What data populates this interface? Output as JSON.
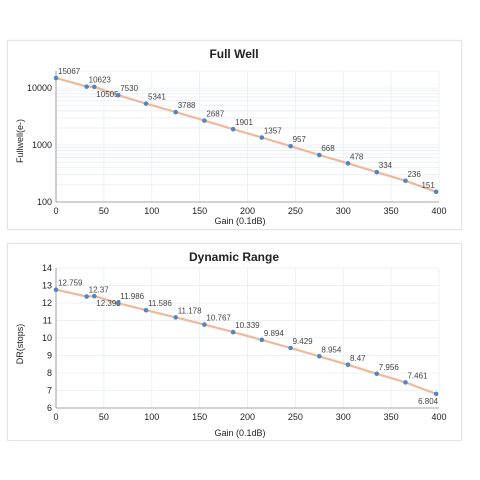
{
  "chart_data": [
    {
      "type": "line",
      "title": "Full Well",
      "xlabel": "Gain (0.1dB)",
      "ylabel": "Fullwell(e-)",
      "yscale": "log",
      "xlim": [
        0,
        400
      ],
      "ylim": [
        100,
        20000
      ],
      "xticks": [
        0,
        50,
        100,
        150,
        200,
        250,
        300,
        350,
        400
      ],
      "yticks": [
        100,
        1000,
        10000
      ],
      "ytick_labels": [
        "100",
        "1000",
        "10000"
      ],
      "grid": true,
      "color_points": "#4f86c6",
      "color_trend": "#f0b89a",
      "x": [
        0,
        32,
        40,
        65,
        94,
        125,
        155,
        185,
        215,
        245,
        275,
        305,
        335,
        365,
        397
      ],
      "values": [
        15067,
        10623,
        10505,
        7530,
        5341,
        3788,
        2687,
        1901,
        1357,
        957,
        668,
        478,
        334,
        236,
        151
      ],
      "labels": [
        "15067",
        "10623",
        "10505",
        "7530",
        "5341",
        "3788",
        "2687",
        "1901",
        "1357",
        "957",
        "668",
        "478",
        "334",
        "236",
        "151"
      ],
      "label_pos": [
        "above",
        "above",
        "below",
        "above",
        "above",
        "above",
        "above",
        "above",
        "above",
        "above",
        "above",
        "above",
        "above",
        "above",
        "above"
      ]
    },
    {
      "type": "line",
      "title": "Dynamic Range",
      "xlabel": "Gain (0.1dB)",
      "ylabel": "DR(stops)",
      "yscale": "linear",
      "xlim": [
        0,
        400
      ],
      "ylim": [
        6,
        14
      ],
      "xticks": [
        0,
        50,
        100,
        150,
        200,
        250,
        300,
        350,
        400
      ],
      "yticks": [
        6,
        7,
        8,
        9,
        10,
        11,
        12,
        13,
        14
      ],
      "ytick_labels": [
        "6",
        "7",
        "8",
        "9",
        "10",
        "11",
        "12",
        "13",
        "14"
      ],
      "grid": true,
      "color_points": "#4f86c6",
      "color_trend": "#f0b89a",
      "x": [
        0,
        32,
        40,
        65,
        94,
        125,
        155,
        185,
        215,
        245,
        275,
        305,
        335,
        365,
        397
      ],
      "values": [
        12.759,
        12.37,
        12.392,
        11.986,
        11.586,
        11.178,
        10.767,
        10.339,
        9.894,
        9.429,
        8.954,
        8.47,
        7.956,
        7.461,
        6.804
      ],
      "labels": [
        "12.759",
        "12.37",
        "12.392",
        "11.986",
        "11.586",
        "11.178",
        "10.767",
        "10.339",
        "9.894",
        "9.429",
        "8.954",
        "8.47",
        "7.956",
        "7.461",
        "6.804"
      ],
      "label_pos": [
        "above",
        "above",
        "below",
        "above",
        "above",
        "above",
        "above",
        "above",
        "above",
        "above",
        "above",
        "above",
        "above",
        "above",
        "below"
      ]
    }
  ]
}
